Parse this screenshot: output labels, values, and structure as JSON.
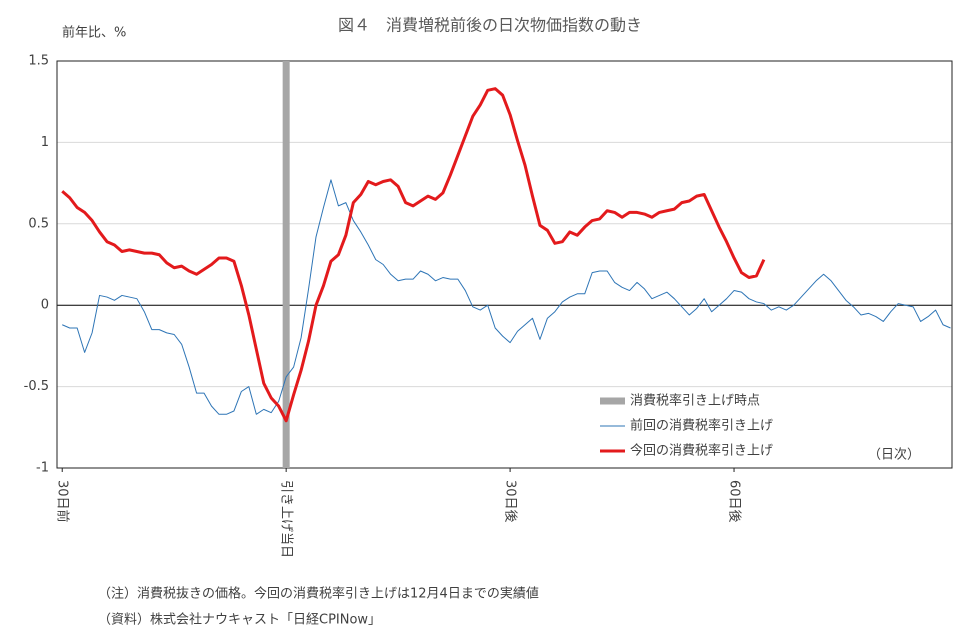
{
  "chart_data": {
    "type": "line",
    "title": "図４　消費増税前後の日次物価指数の動き",
    "y_label": "前年比、%",
    "x_note": "（日次）",
    "notes": [
      "（注）消費税抜きの価格。今回の消費税率引き上げは12月4日までの実績値",
      "（資料）株式会社ナウキャスト「日経CPINow」"
    ],
    "xlim": [
      -30.7,
      89.2
    ],
    "ylim": [
      -1,
      1.5
    ],
    "yticks": [
      1.5,
      1,
      0.5,
      0,
      -0.5,
      -1
    ],
    "xticks": [
      {
        "value": -30,
        "label": "30日前"
      },
      {
        "value": 0,
        "label": "引き上げ当日"
      },
      {
        "value": 30,
        "label": "30日後"
      },
      {
        "value": 60,
        "label": "60日後"
      }
    ],
    "grid": true,
    "legend": "lower right",
    "event": {
      "name": "消費税率引き上げ時点",
      "color": "#a6a6a6",
      "x": 0
    },
    "x": [
      -30,
      -29,
      -28,
      -27,
      -26,
      -25,
      -24,
      -23,
      -22,
      -21,
      -20,
      -19,
      -18,
      -17,
      -16,
      -15,
      -14,
      -13,
      -12,
      -11,
      -10,
      -9,
      -8,
      -7,
      -6,
      -5,
      -4,
      -3,
      -2,
      -1,
      0,
      1,
      2,
      3,
      4,
      5,
      6,
      7,
      8,
      9,
      10,
      11,
      12,
      13,
      14,
      15,
      16,
      17,
      18,
      19,
      20,
      21,
      22,
      23,
      24,
      25,
      26,
      27,
      28,
      29,
      30,
      31,
      32,
      33,
      34,
      35,
      36,
      37,
      38,
      39,
      40,
      41,
      42,
      43,
      44,
      45,
      46,
      47,
      48,
      49,
      50,
      51,
      52,
      53,
      54,
      55,
      56,
      57,
      58,
      59,
      60,
      61,
      62,
      63,
      64,
      65,
      66,
      67,
      68,
      69,
      70,
      71,
      72,
      73,
      74,
      75,
      76,
      77,
      78,
      79,
      80,
      81,
      82,
      83,
      84,
      85,
      86,
      87,
      88,
      89
    ],
    "series": [
      {
        "name": "前回の消費税率引き上げ",
        "color": "#2e75b6",
        "width": 1,
        "values": [
          -0.12,
          -0.14,
          -0.14,
          -0.29,
          -0.17,
          0.06,
          0.05,
          0.03,
          0.06,
          0.05,
          0.04,
          -0.04,
          -0.15,
          -0.15,
          -0.17,
          -0.18,
          -0.24,
          -0.38,
          -0.54,
          -0.54,
          -0.62,
          -0.67,
          -0.67,
          -0.65,
          -0.53,
          -0.5,
          -0.67,
          -0.64,
          -0.66,
          -0.59,
          -0.44,
          -0.38,
          -0.2,
          0.1,
          0.42,
          0.6,
          0.77,
          0.61,
          0.63,
          0.52,
          0.45,
          0.37,
          0.28,
          0.25,
          0.19,
          0.15,
          0.16,
          0.16,
          0.21,
          0.19,
          0.15,
          0.17,
          0.16,
          0.16,
          0.09,
          -0.01,
          -0.03,
          0,
          -0.14,
          -0.19,
          -0.23,
          -0.16,
          -0.12,
          -0.08,
          -0.21,
          -0.08,
          -0.04,
          0.02,
          0.05,
          0.07,
          0.07,
          0.2,
          0.21,
          0.21,
          0.14,
          0.11,
          0.09,
          0.14,
          0.1,
          0.04,
          0.06,
          0.08,
          0.04,
          -0.01,
          -0.06,
          -0.02,
          0.04,
          -0.04,
          0,
          0.04,
          0.09,
          0.08,
          0.04,
          0.02,
          0.01,
          -0.03,
          -0.01,
          -0.03,
          0,
          0.05,
          0.1,
          0.15,
          0.19,
          0.15,
          0.09,
          0.03,
          -0.01,
          -0.06,
          -0.05,
          -0.07,
          -0.1,
          -0.04,
          0.01,
          0,
          -0.01,
          -0.1,
          -0.07,
          -0.03,
          -0.12,
          -0.14
        ]
      },
      {
        "name": "今回の消費税率引き上げ",
        "color": "#e31a1c",
        "width": 3,
        "values": [
          0.7,
          0.66,
          0.6,
          0.57,
          0.52,
          0.45,
          0.39,
          0.37,
          0.33,
          0.34,
          0.33,
          0.32,
          0.32,
          0.31,
          0.26,
          0.23,
          0.24,
          0.21,
          0.19,
          0.22,
          0.25,
          0.29,
          0.29,
          0.27,
          0.12,
          -0.06,
          -0.27,
          -0.48,
          -0.57,
          -0.62,
          -0.71,
          -0.55,
          -0.4,
          -0.22,
          0,
          0.12,
          0.27,
          0.31,
          0.43,
          0.63,
          0.68,
          0.76,
          0.74,
          0.76,
          0.77,
          0.73,
          0.63,
          0.61,
          0.64,
          0.67,
          0.65,
          0.69,
          0.8,
          0.92,
          1.04,
          1.16,
          1.23,
          1.32,
          1.33,
          1.29,
          1.17,
          1.01,
          0.86,
          0.67,
          0.49,
          0.46,
          0.38,
          0.39,
          0.45,
          0.43,
          0.48,
          0.52,
          0.53,
          0.58,
          0.57,
          0.54,
          0.57,
          0.57,
          0.56,
          0.54,
          0.57,
          0.58,
          0.59,
          0.63,
          0.64,
          0.67,
          0.68,
          0.58,
          0.48,
          0.39,
          0.29,
          0.2,
          0.17,
          0.18,
          0.28,
          null,
          null,
          null,
          null,
          null,
          null,
          null,
          null,
          null,
          null,
          null,
          null,
          null,
          null,
          null,
          null,
          null,
          null,
          null,
          null,
          null,
          null,
          null,
          null,
          null
        ]
      }
    ]
  }
}
